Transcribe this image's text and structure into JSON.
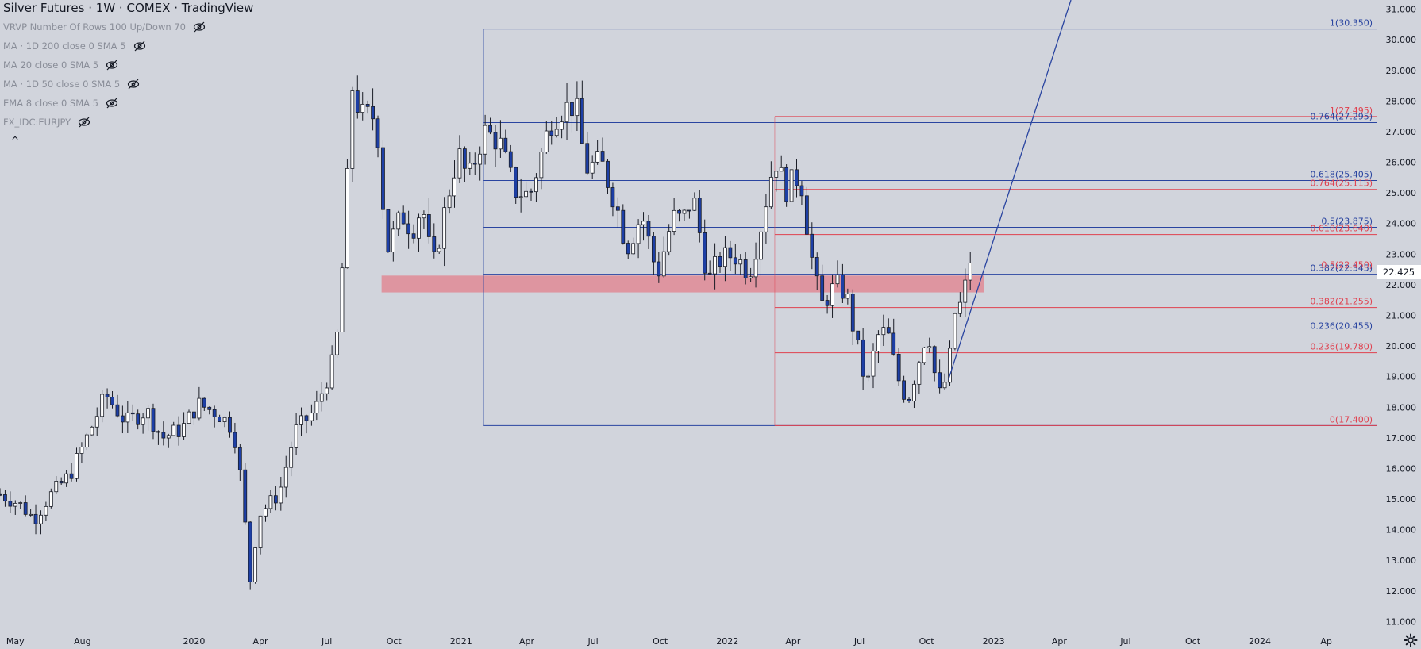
{
  "header": {
    "title": "Silver Futures · 1W · COMEX · TradingView",
    "indicators": [
      "VRVP Number Of Rows 100 Up/Down 70",
      "MA · 1D 200 close 0 SMA 5",
      "MA 20 close 0 SMA 5",
      "MA · 1D 50 close 0 SMA 5",
      "EMA 8 close 0 SMA 5",
      "FX_IDC:EURJPY"
    ],
    "collapse_glyph": "^"
  },
  "colors": {
    "background": "#d1d4dc",
    "bull_candle": "#ffffff",
    "bear_candle": "#1d3fa6",
    "wick": "#1a1d26",
    "fib_blue": "#2944a0",
    "fib_red": "#e0414f",
    "zone": "#e08a95"
  },
  "current_price": {
    "label": "22.425",
    "value": 22.425
  },
  "icons": {
    "settings": "gear-icon",
    "hidden": "eye-crossed-icon"
  },
  "chart_data": {
    "type": "candlestick",
    "title": "Silver Futures · 1W · COMEX · TradingView",
    "y_axis": {
      "range": [
        10.7,
        31.3
      ],
      "ticks": [
        "31.000",
        "30.000",
        "29.000",
        "28.000",
        "27.000",
        "26.000",
        "25.000",
        "24.000",
        "23.000",
        "22.000",
        "21.000",
        "20.000",
        "19.000",
        "18.000",
        "17.000",
        "16.000",
        "15.000",
        "14.000",
        "13.000",
        "12.000",
        "11.000"
      ]
    },
    "x_axis": {
      "range": [
        "2019-04-10",
        "2024-06-10"
      ],
      "ticks": [
        {
          "label": "May",
          "date": "2019-05-01"
        },
        {
          "label": "Aug",
          "date": "2019-08-01"
        },
        {
          "label": "2020",
          "date": "2020-01-01"
        },
        {
          "label": "Apr",
          "date": "2020-04-01"
        },
        {
          "label": "Jul",
          "date": "2020-07-01"
        },
        {
          "label": "Oct",
          "date": "2020-10-01"
        },
        {
          "label": "2021",
          "date": "2021-01-01"
        },
        {
          "label": "Apr",
          "date": "2021-04-01"
        },
        {
          "label": "Jul",
          "date": "2021-07-01"
        },
        {
          "label": "Oct",
          "date": "2021-10-01"
        },
        {
          "label": "2022",
          "date": "2022-01-01"
        },
        {
          "label": "Apr",
          "date": "2022-04-01"
        },
        {
          "label": "Jul",
          "date": "2022-07-01"
        },
        {
          "label": "Oct",
          "date": "2022-10-01"
        },
        {
          "label": "2023",
          "date": "2023-01-01"
        },
        {
          "label": "Apr",
          "date": "2023-04-01"
        },
        {
          "label": "Jul",
          "date": "2023-07-01"
        },
        {
          "label": "Oct",
          "date": "2023-10-01"
        },
        {
          "label": "2024",
          "date": "2024-01-01"
        },
        {
          "label": "Ap",
          "date": "2024-04-01"
        }
      ]
    },
    "price_anchors": [
      [
        "2019-04-10",
        15.15
      ],
      [
        "2019-05-06",
        14.85
      ],
      [
        "2019-05-27",
        14.35
      ],
      [
        "2019-06-17",
        15.1
      ],
      [
        "2019-07-15",
        15.8
      ],
      [
        "2019-08-05",
        16.9
      ],
      [
        "2019-09-02",
        18.4
      ],
      [
        "2019-09-30",
        17.5
      ],
      [
        "2019-10-28",
        17.9
      ],
      [
        "2019-11-18",
        17.0
      ],
      [
        "2019-12-16",
        17.3
      ],
      [
        "2020-01-06",
        18.1
      ],
      [
        "2020-02-03",
        17.8
      ],
      [
        "2020-02-24",
        17.3
      ],
      [
        "2020-03-09",
        15.0
      ],
      [
        "2020-03-16",
        12.0
      ],
      [
        "2020-03-30",
        14.5
      ],
      [
        "2020-04-27",
        15.2
      ],
      [
        "2020-05-18",
        17.2
      ],
      [
        "2020-06-15",
        17.9
      ],
      [
        "2020-07-13",
        19.7
      ],
      [
        "2020-07-27",
        24.1
      ],
      [
        "2020-08-03",
        28.6
      ],
      [
        "2020-08-17",
        27.5
      ],
      [
        "2020-09-07",
        27.5
      ],
      [
        "2020-09-21",
        23.1
      ],
      [
        "2020-10-12",
        24.3
      ],
      [
        "2020-10-26",
        23.8
      ],
      [
        "2020-11-09",
        24.6
      ],
      [
        "2020-11-23",
        22.5
      ],
      [
        "2020-12-14",
        24.9
      ],
      [
        "2020-12-28",
        26.3
      ],
      [
        "2021-01-11",
        25.4
      ],
      [
        "2021-02-01",
        27.0
      ],
      [
        "2021-02-22",
        26.7
      ],
      [
        "2021-03-15",
        25.1
      ],
      [
        "2021-04-05",
        24.9
      ],
      [
        "2021-05-03",
        27.3
      ],
      [
        "2021-05-17",
        27.7
      ],
      [
        "2021-06-07",
        27.9
      ],
      [
        "2021-06-21",
        25.8
      ],
      [
        "2021-07-12",
        26.0
      ],
      [
        "2021-08-02",
        24.6
      ],
      [
        "2021-08-16",
        23.2
      ],
      [
        "2021-09-06",
        24.3
      ],
      [
        "2021-09-27",
        22.3
      ],
      [
        "2021-10-18",
        24.2
      ],
      [
        "2021-11-01",
        24.1
      ],
      [
        "2021-11-15",
        24.9
      ],
      [
        "2021-12-06",
        22.1
      ],
      [
        "2021-12-20",
        22.8
      ],
      [
        "2022-01-10",
        23.0
      ],
      [
        "2022-01-31",
        22.4
      ],
      [
        "2022-02-14",
        23.7
      ],
      [
        "2022-03-07",
        26.2
      ],
      [
        "2022-03-21",
        25.1
      ],
      [
        "2022-04-11",
        25.6
      ],
      [
        "2022-04-25",
        23.1
      ],
      [
        "2022-05-09",
        21.3
      ],
      [
        "2022-05-30",
        22.0
      ],
      [
        "2022-06-13",
        21.7
      ],
      [
        "2022-06-27",
        20.1
      ],
      [
        "2022-07-11",
        18.6
      ],
      [
        "2022-07-25",
        20.3
      ],
      [
        "2022-08-08",
        20.5
      ],
      [
        "2022-08-22",
        19.0
      ],
      [
        "2022-09-05",
        18.2
      ],
      [
        "2022-09-19",
        19.4
      ],
      [
        "2022-10-03",
        20.6
      ],
      [
        "2022-10-17",
        18.3
      ],
      [
        "2022-10-31",
        19.1
      ],
      [
        "2022-11-07",
        21.0
      ],
      [
        "2022-11-21",
        21.5
      ],
      [
        "2022-11-28",
        23.0
      ],
      [
        "2022-12-05",
        22.4
      ]
    ],
    "fibonacci_blue": {
      "anchor_high": {
        "date": "2021-02-01",
        "value": 30.35
      },
      "anchor_low": {
        "date": "2022-08-29",
        "value": 17.4
      },
      "levels": [
        {
          "label": "1(30.350)",
          "value": 30.35
        },
        {
          "label": "0.764(27.295)",
          "value": 27.295
        },
        {
          "label": "0.618(25.405)",
          "value": 25.405
        },
        {
          "label": "0.5(23.875)",
          "value": 23.875
        },
        {
          "label": "0.382(22.345)",
          "value": 22.345
        },
        {
          "label": "0.236(20.455)",
          "value": 20.455
        }
      ]
    },
    "fibonacci_red": {
      "anchor_high": {
        "date": "2022-03-07",
        "value": 27.495
      },
      "anchor_low": {
        "date": "2022-08-29",
        "value": 17.4
      },
      "levels": [
        {
          "label": "1(27.495)",
          "value": 27.495
        },
        {
          "label": "0.764(25.115)",
          "value": 25.115
        },
        {
          "label": "0.618(23.640)",
          "value": 23.64
        },
        {
          "label": "0.5(22.450)",
          "value": 22.45
        },
        {
          "label": "0.382(21.255)",
          "value": 21.255
        },
        {
          "label": "0.236(19.780)",
          "value": 19.78
        },
        {
          "label": "0(17.400)",
          "value": 17.4
        }
      ]
    },
    "support_zone": {
      "from": "2020-09-14",
      "to": "2022-12-19",
      "low": 21.75,
      "high": 22.3
    },
    "trendline": {
      "start": {
        "date": "2022-10-31",
        "value": 18.9
      },
      "end": {
        "date": "2023-04-17",
        "value": 31.3
      }
    }
  }
}
